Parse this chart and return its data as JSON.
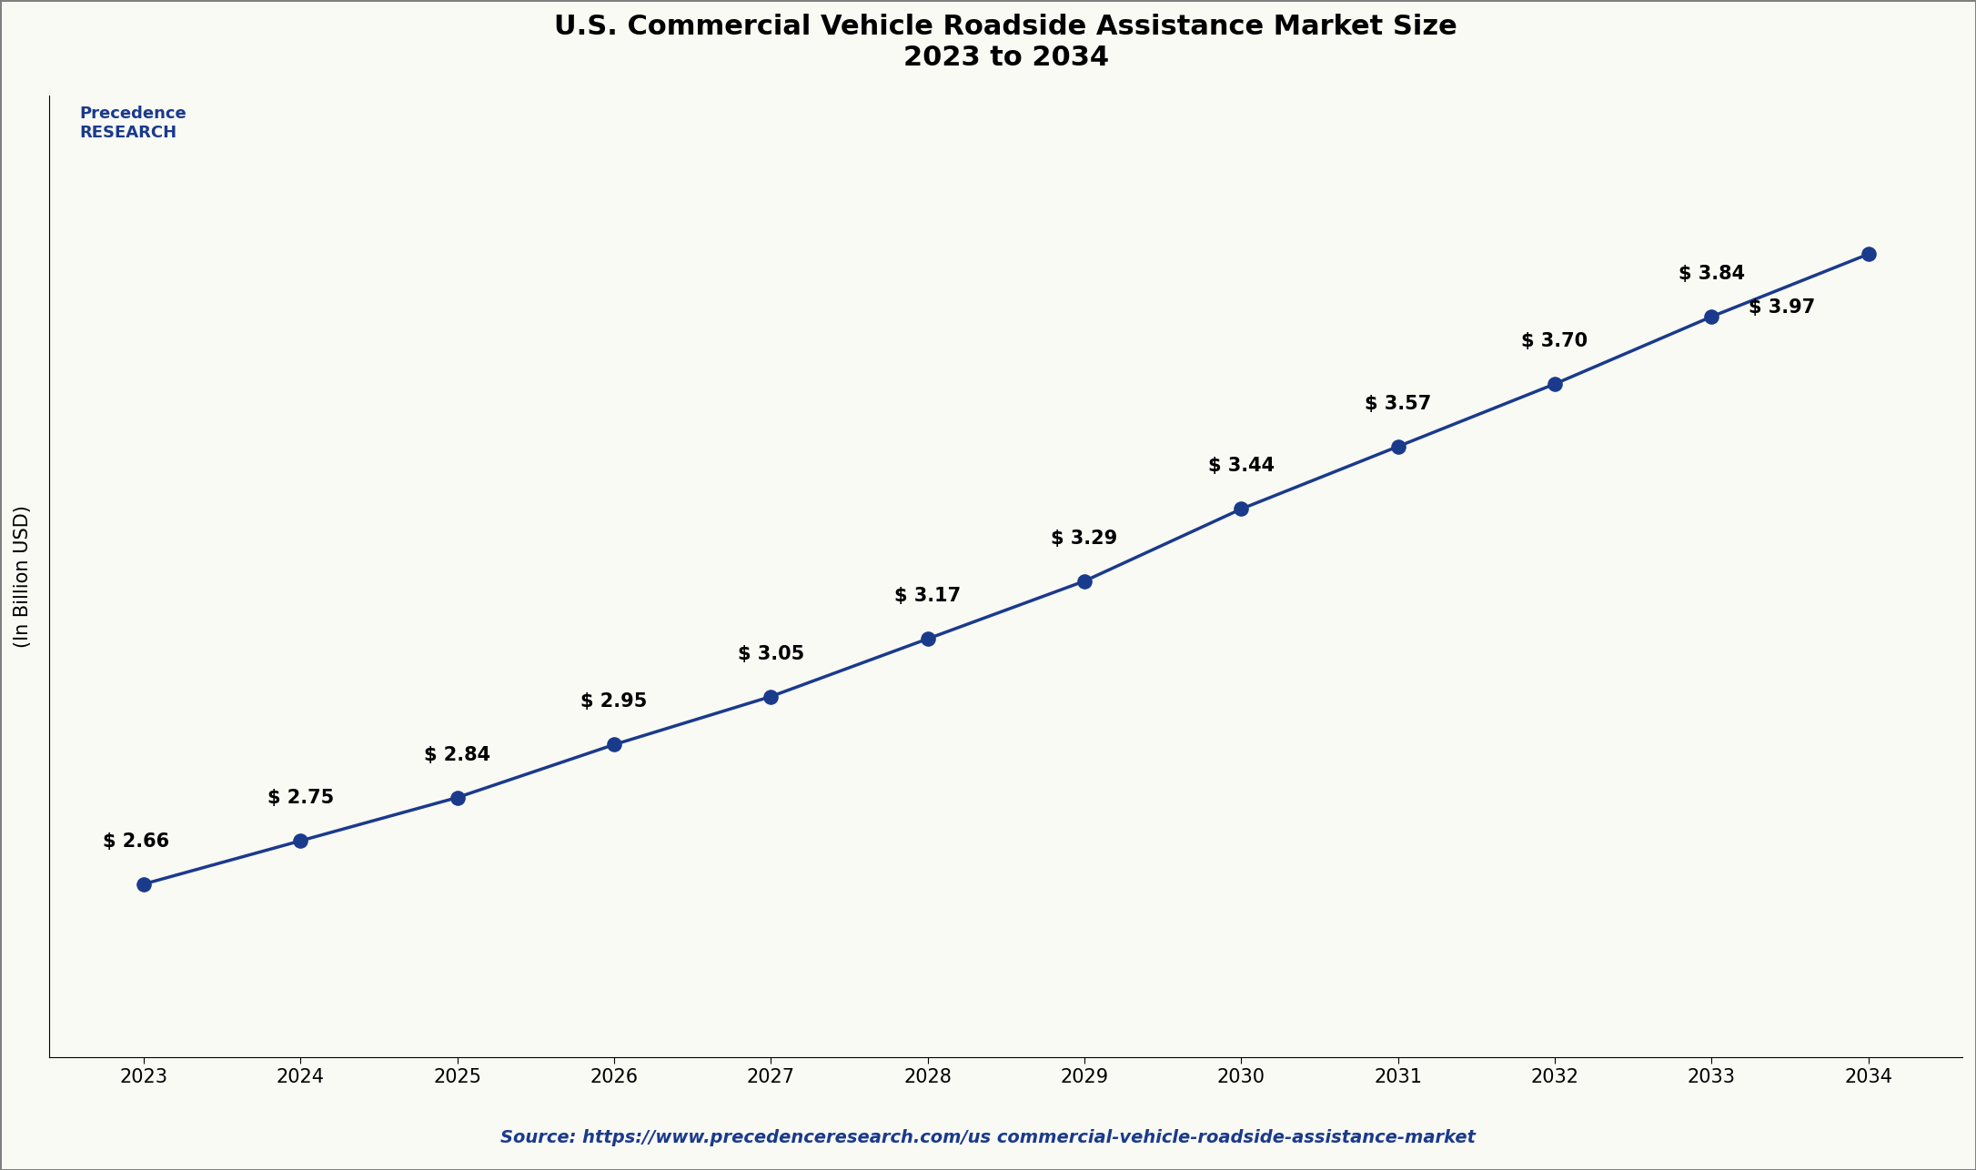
{
  "title_line1": "U.S. Commercial Vehicle Roadside Assistance Market Size",
  "title_line2": "2023 to 2034",
  "ylabel": "(In Billion USD)",
  "source_text": "Source: https://www.precedenceresearch.com/us commercial-vehicle-roadside-assistance-market",
  "years": [
    2023,
    2024,
    2025,
    2026,
    2027,
    2028,
    2029,
    2030,
    2031,
    2032,
    2033,
    2034
  ],
  "values": [
    2.66,
    2.75,
    2.84,
    2.95,
    3.05,
    3.17,
    3.29,
    3.44,
    3.57,
    3.7,
    3.84,
    3.97
  ],
  "labels": [
    "$ 2.66",
    "$ 2.75",
    "$ 2.84",
    "$ 2.95",
    "$ 3.05",
    "$ 3.17",
    "$ 3.29",
    "$ 3.44",
    "$ 3.57",
    "$ 3.70",
    "$ 3.84",
    "$ 3.97"
  ],
  "line_color": "#1a3a8c",
  "marker_color": "#1a3a8c",
  "bg_color": "#fafaf5",
  "plot_bg_color": "#fafaf5",
  "title_fontsize": 22,
  "label_fontsize": 15,
  "axis_fontsize": 15,
  "source_fontsize": 14,
  "ylabel_fontsize": 15,
  "ylim_min": 2.3,
  "ylim_max": 4.3,
  "annotation_offset_y": [
    0.07,
    0.07,
    0.07,
    0.07,
    0.07,
    0.07,
    0.07,
    0.07,
    0.07,
    0.07,
    0.07,
    -0.13
  ],
  "annotation_offset_x": [
    -0.05,
    0.0,
    0.0,
    0.0,
    0.0,
    0.0,
    0.0,
    0.0,
    0.0,
    0.0,
    0.0,
    -0.55
  ]
}
